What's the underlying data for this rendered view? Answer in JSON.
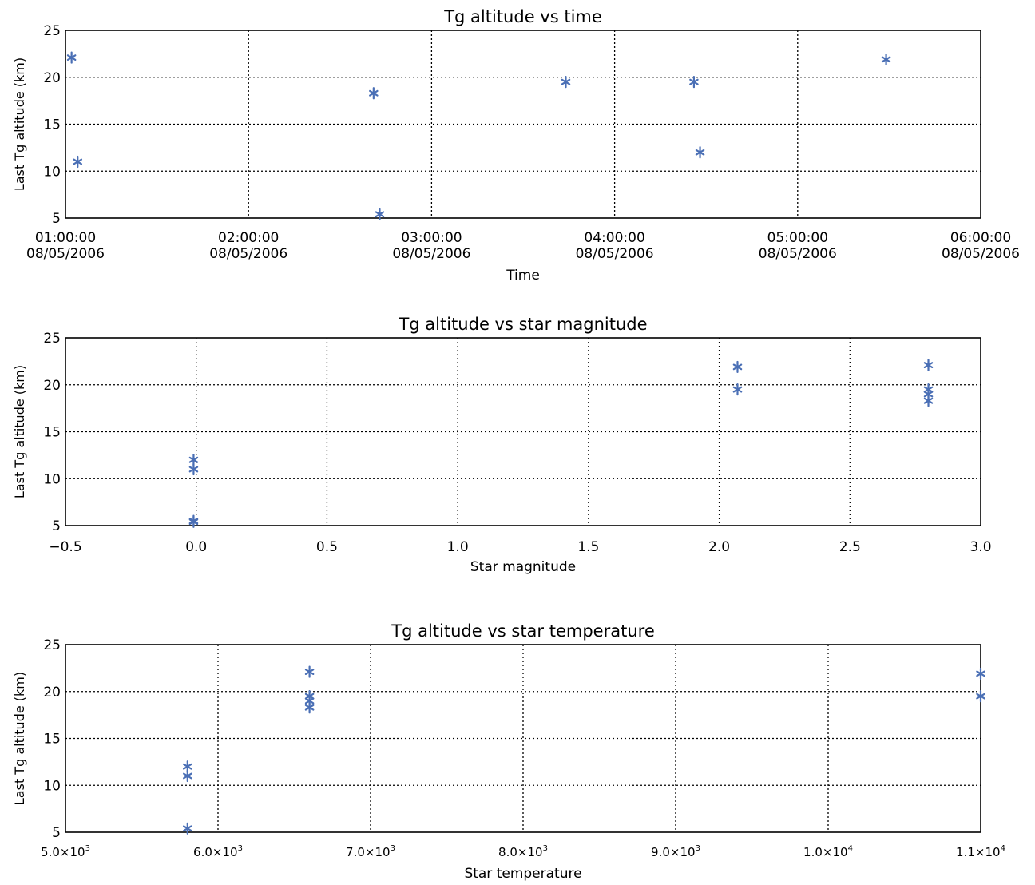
{
  "chart_data": [
    {
      "type": "scatter",
      "title": "Tg altitude vs time",
      "xlabel": "Time",
      "ylabel": "Last Tg altitude (km)",
      "x_scale": "time",
      "xlim": [
        "01:00:00 08/05/2006",
        "06:00:00 08/05/2006"
      ],
      "ylim": [
        5,
        25
      ],
      "xticks": [
        "01:00:00",
        "02:00:00",
        "03:00:00",
        "04:00:00",
        "05:00:00",
        "06:00:00"
      ],
      "xtick_dates": [
        "08/05/2006",
        "08/05/2006",
        "08/05/2006",
        "08/05/2006",
        "08/05/2006",
        "08/05/2006"
      ],
      "yticks": [
        "5",
        "10",
        "15",
        "20",
        "25"
      ],
      "grid": true,
      "marker": "asterisk",
      "series": [
        {
          "x": [
            "01:02",
            "01:04",
            "02:41",
            "02:43",
            "03:44",
            "04:26",
            "04:28",
            "05:29"
          ],
          "y": [
            22.1,
            11.0,
            18.3,
            5.4,
            19.5,
            19.5,
            12.0,
            21.9
          ]
        }
      ]
    },
    {
      "type": "scatter",
      "title": "Tg altitude vs star magnitude",
      "xlabel": "Star magnitude",
      "ylabel": "Last Tg altitude (km)",
      "xlim": [
        -0.5,
        3.0
      ],
      "ylim": [
        5,
        25
      ],
      "xticks": [
        "−0.5",
        "0.0",
        "0.5",
        "1.0",
        "1.5",
        "2.0",
        "2.5",
        "3.0"
      ],
      "yticks": [
        "5",
        "10",
        "15",
        "20",
        "25"
      ],
      "grid": true,
      "marker": "asterisk",
      "series": [
        {
          "x": [
            -0.01,
            -0.01,
            -0.01,
            -0.01,
            2.07,
            2.07,
            2.8,
            2.8,
            2.8,
            2.8
          ],
          "y": [
            12.0,
            11.0,
            5.4,
            5.5,
            21.9,
            19.5,
            22.1,
            19.5,
            19.0,
            18.3
          ]
        }
      ]
    },
    {
      "type": "scatter",
      "title": "Tg altitude vs star temperature",
      "xlabel": "Star temperature",
      "ylabel": "Last Tg altitude (km)",
      "xlim": [
        5000,
        11000
      ],
      "ylim": [
        5,
        25
      ],
      "xticks": [
        {
          "mant": "5.0×10",
          "exp": "3"
        },
        {
          "mant": "6.0×10",
          "exp": "3"
        },
        {
          "mant": "7.0×10",
          "exp": "3"
        },
        {
          "mant": "8.0×10",
          "exp": "3"
        },
        {
          "mant": "9.0×10",
          "exp": "3"
        },
        {
          "mant": "1.0×10",
          "exp": "4"
        },
        {
          "mant": "1.1×10",
          "exp": "4"
        }
      ],
      "yticks": [
        "5",
        "10",
        "15",
        "20",
        "25"
      ],
      "grid": true,
      "marker": "asterisk",
      "series": [
        {
          "x": [
            5800,
            5800,
            5800,
            6600,
            6600,
            6600,
            6600,
            11000,
            11000
          ],
          "y": [
            12.0,
            11.0,
            5.4,
            22.1,
            19.5,
            19.0,
            18.3,
            21.9,
            19.5
          ]
        }
      ]
    }
  ],
  "colors": {
    "marker": "#4a6fb5",
    "axes": "#000000",
    "grid": "#000000"
  }
}
